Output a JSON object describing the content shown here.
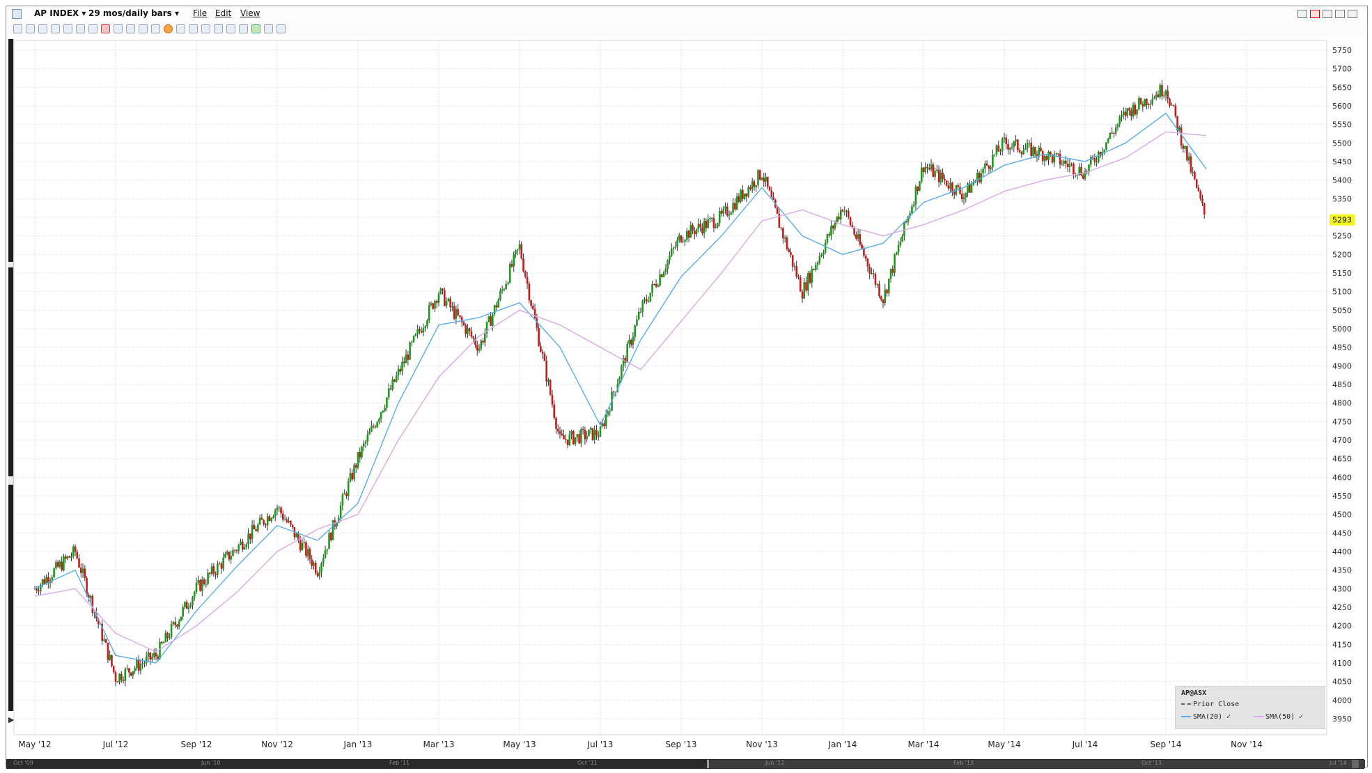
{
  "window": {
    "symbol": "AP INDEX",
    "period": "29 mos/daily bars",
    "menu": [
      "File",
      "Edit",
      "View"
    ]
  },
  "toolbar": {
    "icons": [
      "pointer-icon",
      "cursor-icon",
      "panel-icon",
      "blue-square-icon",
      "line-icon",
      "grid-icon",
      "dropdown-icon",
      "pencil-icon",
      "fib-icon",
      "line-tool-icon",
      "zoom-in-icon",
      "zoom-out-icon",
      "target-icon",
      "curve-icon",
      "ray-icon",
      "fork-icon",
      "fork-icon",
      "lines-icon",
      "parallel-icon",
      "pie-icon",
      "wrench-icon",
      "dropdown-icon"
    ]
  },
  "legend": {
    "title": "AP@ASX",
    "prior_close": "Prior Close",
    "sma20": "SMA(20)",
    "sma50": "SMA(50)"
  },
  "scroller_labels": [
    "Oct '09",
    "Jun '10",
    "Feb '11",
    "Oct '11",
    "Jun '12",
    "Feb '13",
    "Oct '13",
    "Jul '14"
  ],
  "colors": {
    "up": "#1a9a1a",
    "down": "#c81a1a",
    "sma20": "#59aee8",
    "sma50": "#d9a9e6",
    "current_tag": "#f5f51e"
  },
  "chart_data": {
    "type": "line",
    "title": "AP INDEX",
    "x_ticks": [
      "May '12",
      "Jul '12",
      "Sep '12",
      "Nov '12",
      "Jan '13",
      "Mar '13",
      "May '13",
      "Jul '13",
      "Sep '13",
      "Nov '13",
      "Jan '14",
      "Mar '14",
      "May '14",
      "Jul '14",
      "Sep '14",
      "Nov '14"
    ],
    "y_ticks": [
      3950,
      4000,
      4050,
      4100,
      4150,
      4200,
      4250,
      4300,
      4350,
      4400,
      4450,
      4500,
      4550,
      4600,
      4650,
      4700,
      4750,
      4800,
      4850,
      4900,
      4950,
      5000,
      5050,
      5100,
      5150,
      5200,
      5250,
      5300,
      5350,
      5400,
      5450,
      5500,
      5550,
      5600,
      5650,
      5700,
      5750
    ],
    "ylim": [
      3950,
      5750
    ],
    "grid": true,
    "current_value": "5293",
    "series": [
      {
        "name": "AP@ASX",
        "x": [
          "May '12",
          "Jun '12",
          "Jul '12",
          "Aug '12",
          "Sep '12",
          "Oct '12",
          "Nov '12",
          "Dec '12",
          "Jan '13",
          "Feb '13",
          "Mar '13",
          "Apr '13",
          "May '13",
          "Jun '13",
          "Jul '13",
          "Aug '13",
          "Sep '13",
          "Oct '13",
          "Nov '13",
          "Dec '13",
          "Jan '14",
          "Feb '14",
          "Mar '14",
          "Apr '14",
          "May '14",
          "Jun '14",
          "Jul '14",
          "Aug '14",
          "Sep '14",
          "Oct '14"
        ],
        "values": [
          4300,
          4400,
          4060,
          4120,
          4300,
          4410,
          4520,
          4350,
          4650,
          4880,
          5100,
          4950,
          5220,
          4700,
          4720,
          5050,
          5250,
          5300,
          5420,
          5100,
          5330,
          5080,
          5440,
          5360,
          5500,
          5470,
          5420,
          5580,
          5650,
          5290
        ]
      },
      {
        "name": "SMA(20)",
        "x": [
          "May '12",
          "Jun '12",
          "Jul '12",
          "Aug '12",
          "Sep '12",
          "Oct '12",
          "Nov '12",
          "Dec '12",
          "Jan '13",
          "Feb '13",
          "Mar '13",
          "Apr '13",
          "May '13",
          "Jun '13",
          "Jul '13",
          "Aug '13",
          "Sep '13",
          "Oct '13",
          "Nov '13",
          "Dec '13",
          "Jan '14",
          "Feb '14",
          "Mar '14",
          "Apr '14",
          "May '14",
          "Jun '14",
          "Jul '14",
          "Aug '14",
          "Sep '14",
          "Oct '14"
        ],
        "values": [
          4300,
          4350,
          4120,
          4100,
          4240,
          4360,
          4470,
          4430,
          4530,
          4800,
          5010,
          5030,
          5070,
          4950,
          4740,
          4970,
          5140,
          5250,
          5380,
          5250,
          5200,
          5230,
          5340,
          5380,
          5440,
          5470,
          5450,
          5500,
          5580,
          5430
        ]
      },
      {
        "name": "SMA(50)",
        "x": [
          "May '12",
          "Jun '12",
          "Jul '12",
          "Aug '12",
          "Sep '12",
          "Oct '12",
          "Nov '12",
          "Dec '12",
          "Jan '13",
          "Feb '13",
          "Mar '13",
          "Apr '13",
          "May '13",
          "Jun '13",
          "Jul '13",
          "Aug '13",
          "Sep '13",
          "Oct '13",
          "Nov '13",
          "Dec '13",
          "Jan '14",
          "Feb '14",
          "Mar '14",
          "Apr '14",
          "May '14",
          "Jun '14",
          "Jul '14",
          "Aug '14",
          "Sep '14",
          "Oct '14"
        ],
        "values": [
          4280,
          4300,
          4180,
          4130,
          4200,
          4290,
          4400,
          4460,
          4500,
          4700,
          4870,
          4980,
          5050,
          5010,
          4950,
          4890,
          5020,
          5150,
          5290,
          5320,
          5280,
          5250,
          5280,
          5320,
          5370,
          5400,
          5420,
          5460,
          5530,
          5520
        ]
      }
    ]
  }
}
